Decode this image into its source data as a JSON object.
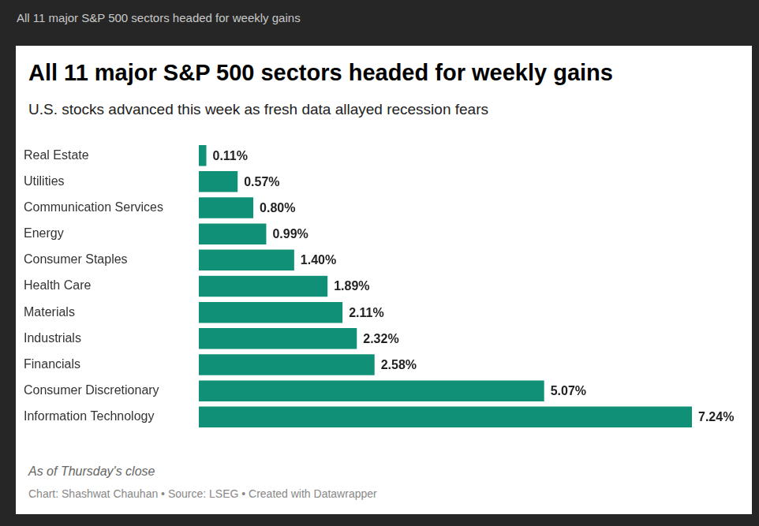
{
  "chart_data": {
    "type": "bar",
    "header": "All 11 major S&P 500 sectors headed for weekly gains",
    "title": "All 11 major S&P 500 sectors headed for weekly gains",
    "subtitle": "U.S. stocks advanced this week as fresh data allayed recession fears",
    "note": "As of Thursday's close",
    "credit": "Chart: Shashwat Chauhan • Source: LSEG • Created with Datawrapper",
    "categories": [
      "Real Estate",
      "Utilities",
      "Communication Services",
      "Energy",
      "Consumer Staples",
      "Health Care",
      "Materials",
      "Industrials",
      "Financials",
      "Consumer Discretionary",
      "Information Technology"
    ],
    "values": [
      0.11,
      0.57,
      0.8,
      0.99,
      1.4,
      1.89,
      2.11,
      2.32,
      2.58,
      5.07,
      7.24
    ],
    "value_labels": [
      "0.11%",
      "0.57%",
      "0.80%",
      "0.99%",
      "1.40%",
      "1.89%",
      "2.11%",
      "2.32%",
      "2.58%",
      "5.07%",
      "7.24%"
    ],
    "color": "#0f9077",
    "xlim": [
      0,
      7.24
    ],
    "orientation": "horizontal",
    "data_labels": true,
    "tick_labels": "y",
    "grid": false
  }
}
